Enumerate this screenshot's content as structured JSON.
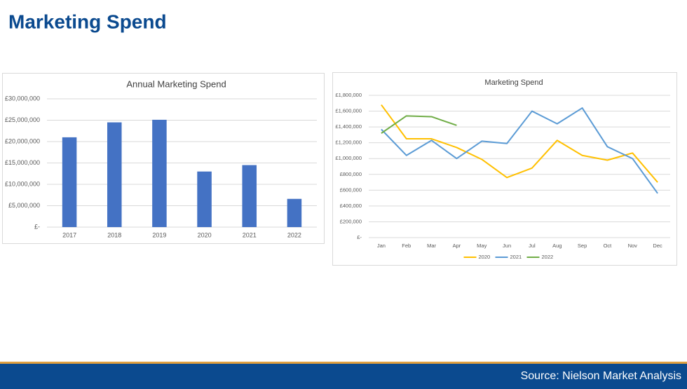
{
  "title": "Marketing Spend",
  "source": "Source: Nielson Market Analysis",
  "chart_data": [
    {
      "type": "bar",
      "title": "Annual Marketing Spend",
      "categories": [
        "2017",
        "2018",
        "2019",
        "2020",
        "2021",
        "2022"
      ],
      "values": [
        21000000,
        24500000,
        25100000,
        13000000,
        14500000,
        6600000
      ],
      "color": "#4472c4",
      "ylim": [
        0,
        30000000
      ],
      "yticks": [
        {
          "value": 0,
          "label": "£-"
        },
        {
          "value": 5000000,
          "label": "£5,000,000"
        },
        {
          "value": 10000000,
          "label": "£10,000,000"
        },
        {
          "value": 15000000,
          "label": "£15,000,000"
        },
        {
          "value": 20000000,
          "label": "£20,000,000"
        },
        {
          "value": 25000000,
          "label": "£25,000,000"
        },
        {
          "value": 30000000,
          "label": "£30,000,000"
        }
      ],
      "grid": true
    },
    {
      "type": "line",
      "title": "Marketing Spend",
      "categories": [
        "Jan",
        "Feb",
        "Mar",
        "Apr",
        "May",
        "Jun",
        "Jul",
        "Aug",
        "Sep",
        "Oct",
        "Nov",
        "Dec"
      ],
      "series": [
        {
          "name": "2020",
          "color": "#ffc000",
          "values": [
            1680000,
            1250000,
            1250000,
            1140000,
            990000,
            760000,
            880000,
            1230000,
            1040000,
            980000,
            1070000,
            700000
          ]
        },
        {
          "name": "2021",
          "color": "#5b9bd5",
          "values": [
            1370000,
            1040000,
            1230000,
            1000000,
            1220000,
            1190000,
            1600000,
            1440000,
            1640000,
            1150000,
            1000000,
            560000
          ]
        },
        {
          "name": "2022",
          "color": "#70ad47",
          "values": [
            1320000,
            1540000,
            1530000,
            1420000,
            null,
            null,
            null,
            null,
            null,
            null,
            null,
            null
          ]
        }
      ],
      "ylim": [
        0,
        1800000
      ],
      "yticks": [
        {
          "value": 0,
          "label": "£-"
        },
        {
          "value": 200000,
          "label": "£200,000"
        },
        {
          "value": 400000,
          "label": "£400,000"
        },
        {
          "value": 600000,
          "label": "£600,000"
        },
        {
          "value": 800000,
          "label": "£800,000"
        },
        {
          "value": 1000000,
          "label": "£1,000,000"
        },
        {
          "value": 1200000,
          "label": "£1,200,000"
        },
        {
          "value": 1400000,
          "label": "£1,400,000"
        },
        {
          "value": 1600000,
          "label": "£1,600,000"
        },
        {
          "value": 1800000,
          "label": "£1,800,000"
        }
      ],
      "grid": true,
      "legend": "bottom"
    }
  ]
}
